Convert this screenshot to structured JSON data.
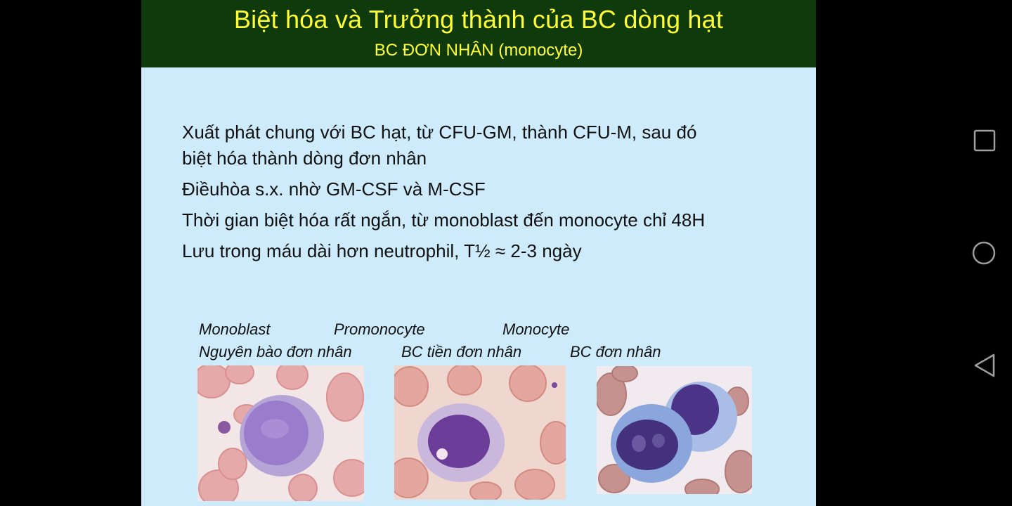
{
  "slide": {
    "title": "Biệt hóa và Trưởng thành của BC dòng hạt",
    "subtitle": "BC ĐƠN NHÂN (monocyte)",
    "bullets": [
      "Xuất phát chung với BC hạt, từ CFU-GM, thành CFU-M, sau đó",
      "biệt hóa thành dòng đơn nhân",
      "Điềuhòa s.x. nhờ GM-CSF và M-CSF",
      "Thời gian biệt hóa rất ngắn, từ monoblast đến monocyte chỉ 48H",
      "Lưu trong máu dài hơn neutrophil, T½ ≈ 2-3 ngày"
    ],
    "captions": {
      "monoblast": "Monoblast",
      "monoblast_vi": "Nguyên bào đơn nhân",
      "promonocyte": "Promonocyte",
      "promonocyte_vi": "BC tiền đơn nhân",
      "monocyte": "Monocyte",
      "monocyte_vi": "BC đơn nhân"
    }
  },
  "colors": {
    "title_bar": "#0f3a0b",
    "title_text": "#ffff33",
    "slide_bg": "#cdebfb",
    "frame_bg": "#000000",
    "nav_icon": "#9e9e9e"
  },
  "nav": {
    "recent_icon": "square-icon",
    "home_icon": "circle-icon",
    "back_icon": "triangle-back-icon"
  }
}
